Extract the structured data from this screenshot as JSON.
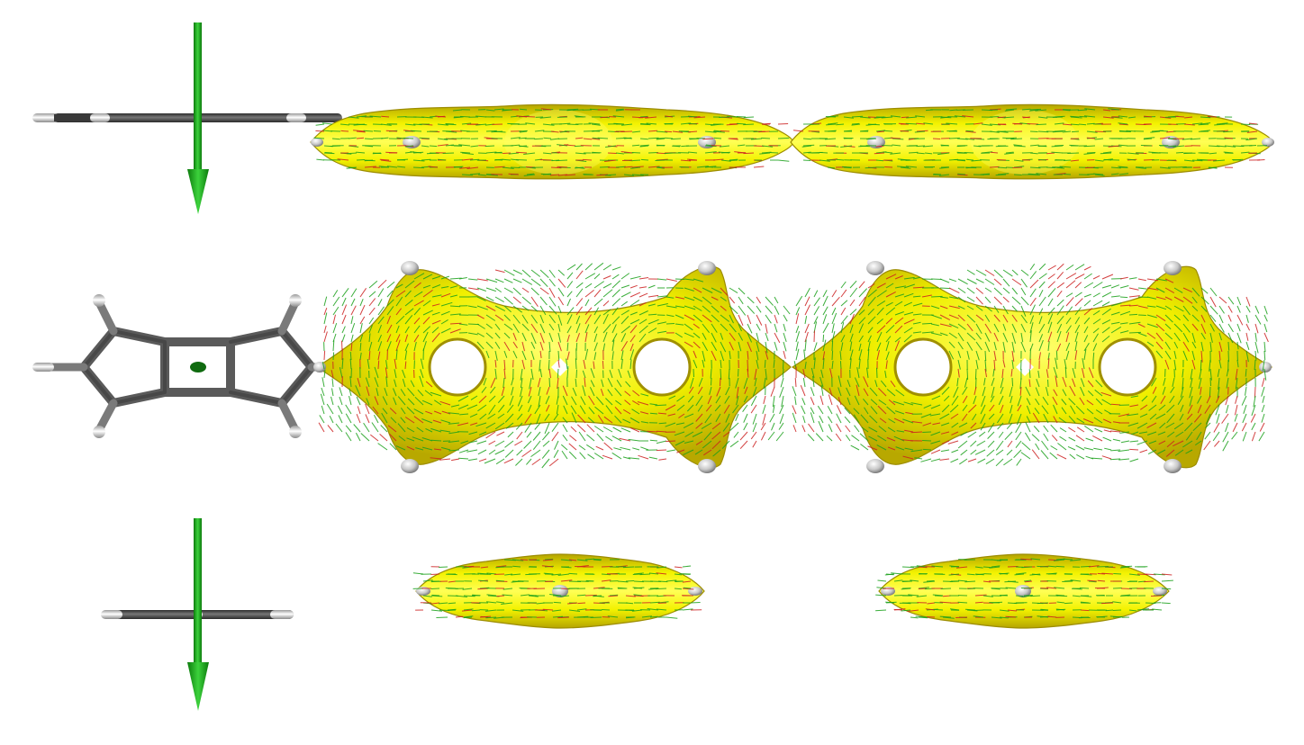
{
  "figure": {
    "kind": "molecular visualization (current density isosurface with vector field)",
    "views": [
      "side-view",
      "top-view",
      "end-view"
    ]
  },
  "colors": {
    "background": "#ffffff",
    "isosurface": "#f2f200",
    "isosurface_highlight": "#ffff66",
    "isosurface_shadow": "#c9b800",
    "vector_green": "#1aa01a",
    "vector_red": "#cc2020",
    "carbon": "#555555",
    "hydrogen": "#e6e6e6",
    "axis_arrow": "#1fa01f"
  },
  "icons": {
    "field_arrow": "arrow-down-icon",
    "field_dot": "dot-icon"
  }
}
